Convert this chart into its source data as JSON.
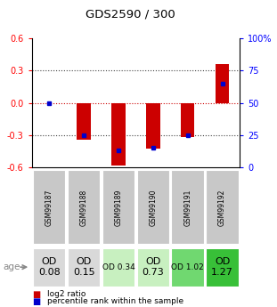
{
  "title": "GDS2590 / 300",
  "samples": [
    "GSM99187",
    "GSM99188",
    "GSM99189",
    "GSM99190",
    "GSM99191",
    "GSM99192"
  ],
  "log2_ratios": [
    0.0,
    -0.34,
    -0.58,
    -0.43,
    -0.32,
    0.36
  ],
  "percentile_ranks": [
    50,
    25,
    13,
    15,
    25,
    65
  ],
  "age_labels": [
    "OD\n0.08",
    "OD\n0.15",
    "OD 0.34",
    "OD\n0.73",
    "OD 1.02",
    "OD\n1.27"
  ],
  "age_fontsize": [
    8,
    8,
    6.5,
    8,
    6.5,
    8
  ],
  "cell_colors": [
    "#d9d9d9",
    "#d9d9d9",
    "#c8f0c0",
    "#c8f0c0",
    "#70d870",
    "#38c038"
  ],
  "sample_cell_color": "#c8c8c8",
  "ylim": [
    -0.6,
    0.6
  ],
  "yticks_left": [
    -0.6,
    -0.3,
    0.0,
    0.3,
    0.6
  ],
  "yticks_right": [
    0,
    25,
    50,
    75,
    100
  ],
  "bar_color": "#cc0000",
  "dot_color": "#0000cc",
  "bg_color": "#ffffff",
  "zero_line_color": "#cc0000",
  "grid_line_color": "#404040"
}
